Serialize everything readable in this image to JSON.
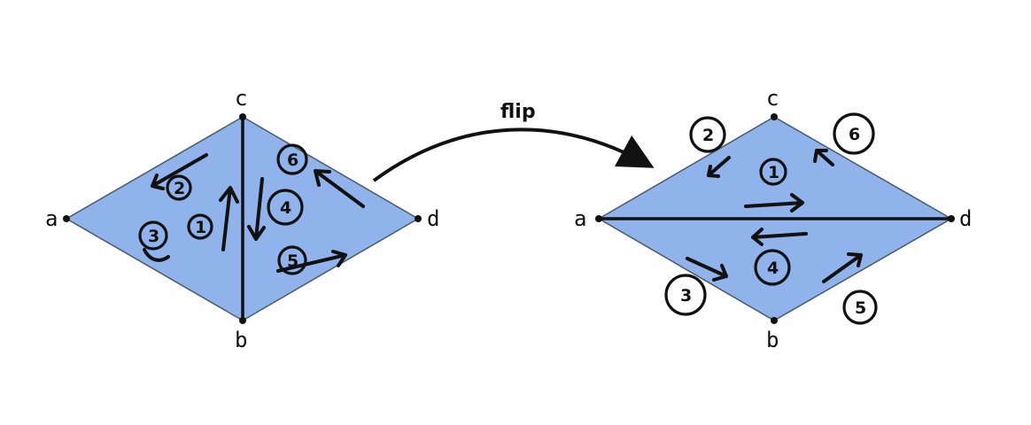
{
  "colors": {
    "fill": "#8fb3ea",
    "edge": "#4a5a6a",
    "ink": "#111111"
  },
  "flip_label": "flip",
  "left": {
    "vertices": {
      "a": "a",
      "b": "b",
      "c": "c",
      "d": "d"
    },
    "edge_numbers": [
      "1",
      "2",
      "3",
      "4",
      "5",
      "6"
    ]
  },
  "right": {
    "vertices": {
      "a": "a",
      "b": "b",
      "c": "c",
      "d": "d"
    },
    "edge_numbers": [
      "1",
      "2",
      "3",
      "4",
      "5",
      "6"
    ]
  }
}
